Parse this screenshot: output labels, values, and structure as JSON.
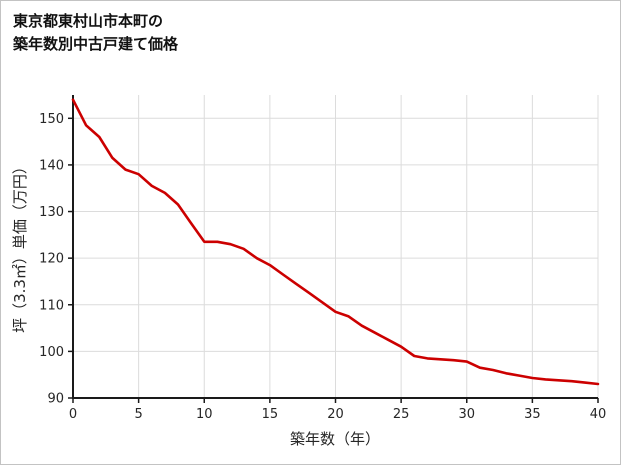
{
  "chart_data": {
    "type": "line",
    "title": "東京都東村山市本町の築年数別中古戸建て価格",
    "title_line1": "東京都東村山市本町の",
    "title_line2": "築年数別中古戸建て価格",
    "xlabel": "築年数（年）",
    "ylabel": "坪（3.3㎡）単価（万円）",
    "x": [
      0,
      1,
      2,
      3,
      4,
      5,
      6,
      7,
      8,
      9,
      10,
      11,
      12,
      13,
      14,
      15,
      16,
      17,
      18,
      19,
      20,
      21,
      22,
      23,
      24,
      25,
      26,
      27,
      28,
      29,
      30,
      31,
      32,
      33,
      34,
      35,
      36,
      37,
      38,
      39,
      40
    ],
    "values": [
      154,
      148.5,
      146,
      141.5,
      139,
      138,
      135.5,
      134,
      131.5,
      127.5,
      123.5,
      123.5,
      123,
      122,
      120,
      118.5,
      116.5,
      114.5,
      112.5,
      110.5,
      108.5,
      107.5,
      105.5,
      104,
      102.5,
      101,
      99,
      98.5,
      98.3,
      98.1,
      97.8,
      96.5,
      96,
      95.3,
      94.8,
      94.3,
      94,
      93.8,
      93.6,
      93.3,
      93
    ],
    "xlim": [
      0,
      40
    ],
    "ylim": [
      90,
      155
    ],
    "xticks": [
      0,
      5,
      10,
      15,
      20,
      25,
      30,
      35,
      40
    ],
    "yticks": [
      90,
      100,
      110,
      120,
      130,
      140,
      150
    ],
    "grid": true,
    "line_color": "#cc0000",
    "grid_color": "#dcdcdc",
    "axis_color": "#1a1a1a"
  }
}
